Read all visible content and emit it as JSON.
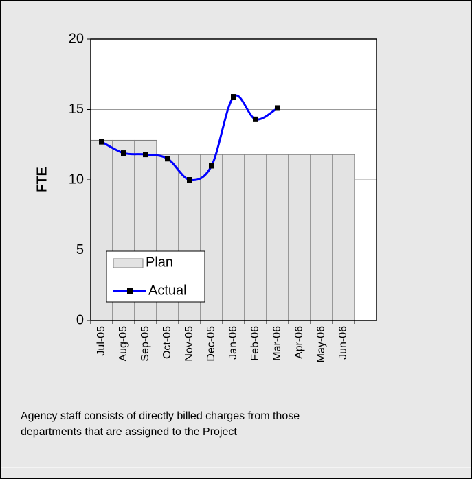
{
  "chart_data": {
    "type": "bar-line",
    "y_label": "FTE",
    "categories": [
      "Jul-05",
      "Aug-05",
      "Sep-05",
      "Oct-05",
      "Nov-05",
      "Dec-05",
      "Jan-06",
      "Feb-06",
      "Mar-06",
      "Apr-06",
      "May-06",
      "Jun-06",
      null
    ],
    "series": [
      {
        "name": "Plan",
        "kind": "bar",
        "color": "#e3e3e3",
        "values": [
          12.8,
          12.8,
          12.8,
          11.8,
          11.8,
          11.8,
          11.8,
          11.8,
          11.8,
          11.8,
          11.8,
          11.8,
          null
        ]
      },
      {
        "name": "Actual",
        "kind": "line",
        "color": "#0000ff",
        "values": [
          12.7,
          11.9,
          11.8,
          11.5,
          10.0,
          11.0,
          15.9,
          14.3,
          15.1,
          null,
          null,
          null,
          null
        ]
      }
    ],
    "ylim": [
      0,
      20
    ],
    "yticks": [
      0,
      5,
      10,
      15,
      20
    ],
    "grid": true,
    "note": "Agency staff consists of directly billed charges from those departments that are assigned to the Project"
  }
}
